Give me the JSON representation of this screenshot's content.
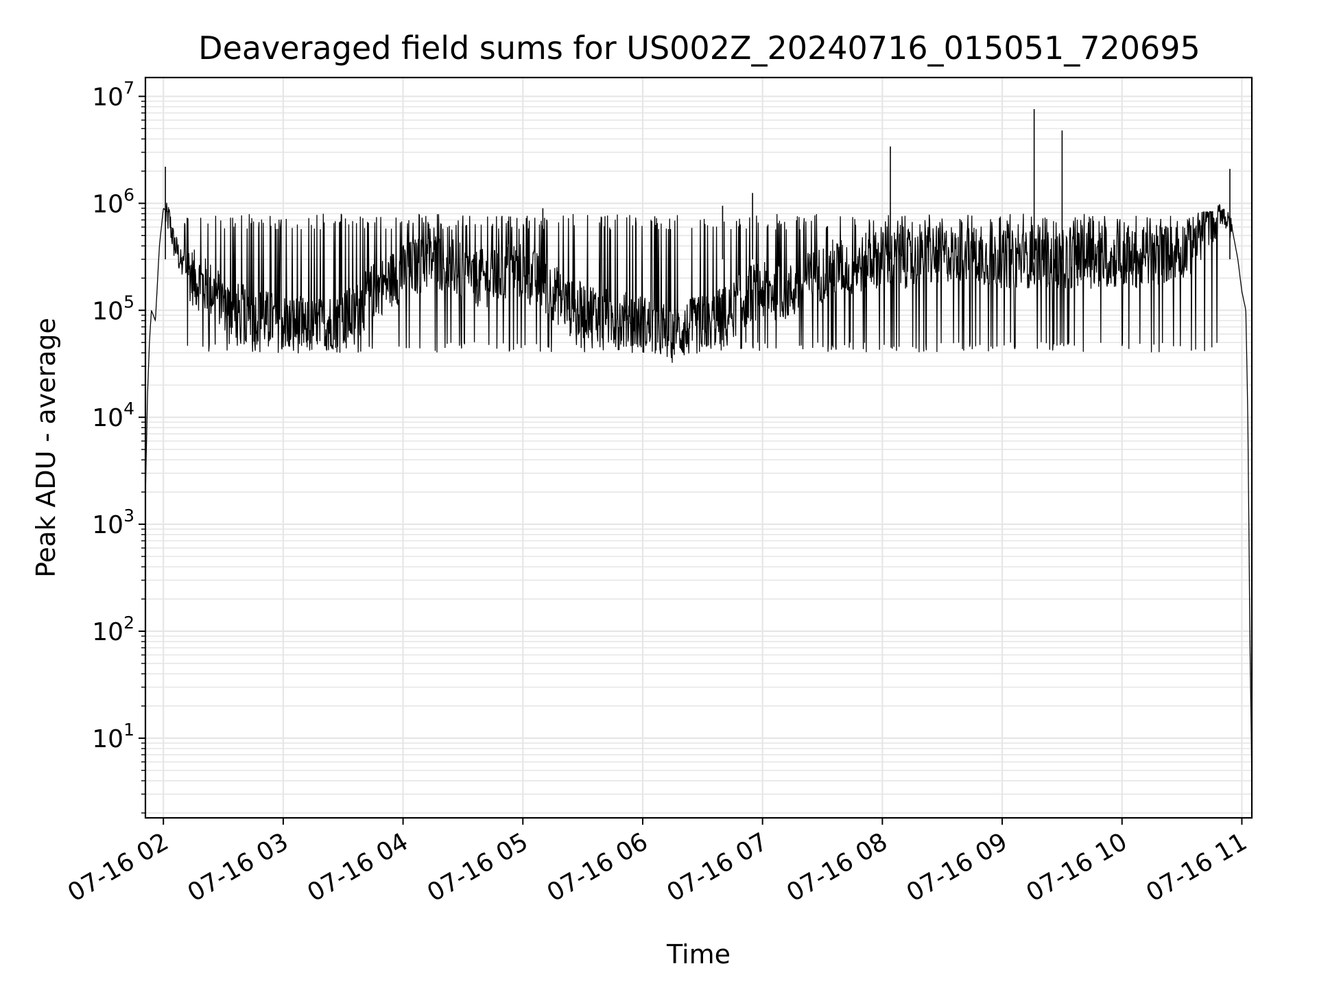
{
  "chart_data": {
    "type": "line",
    "title": "Deaveraged field sums for US002Z_20240716_015051_720695",
    "xlabel": "Time",
    "ylabel": "Peak ADU - average",
    "yscale": "log",
    "ylim": [
      1.8,
      15000000
    ],
    "xlim": [
      "07-16 01:51",
      "07-16 11:05"
    ],
    "grid": true,
    "line_color": "#000000",
    "x_ticks": [
      {
        "value": "07-16 02:00",
        "label": "07-16 02"
      },
      {
        "value": "07-16 03:00",
        "label": "07-16 03"
      },
      {
        "value": "07-16 04:00",
        "label": "07-16 04"
      },
      {
        "value": "07-16 05:00",
        "label": "07-16 05"
      },
      {
        "value": "07-16 06:00",
        "label": "07-16 06"
      },
      {
        "value": "07-16 07:00",
        "label": "07-16 07"
      },
      {
        "value": "07-16 08:00",
        "label": "07-16 08"
      },
      {
        "value": "07-16 09:00",
        "label": "07-16 09"
      },
      {
        "value": "07-16 10:00",
        "label": "07-16 10"
      },
      {
        "value": "07-16 11:00",
        "label": "07-16 11"
      }
    ],
    "y_ticks": [
      {
        "value": 10,
        "base": "10",
        "exp": "1"
      },
      {
        "value": 100,
        "base": "10",
        "exp": "2"
      },
      {
        "value": 1000,
        "base": "10",
        "exp": "3"
      },
      {
        "value": 10000,
        "base": "10",
        "exp": "4"
      },
      {
        "value": 100000,
        "base": "10",
        "exp": "5"
      },
      {
        "value": 1000000,
        "base": "10",
        "exp": "6"
      },
      {
        "value": 10000000,
        "base": "10",
        "exp": "7"
      }
    ],
    "series": [
      {
        "x": [
          "07-16 01:51",
          "07-16 01:52",
          "07-16 01:53",
          "07-16 01:54",
          "07-16 01:56",
          "07-16 01:58",
          "07-16 02:00",
          "07-16 02:03",
          "07-16 02:05",
          "07-16 02:07",
          "07-16 02:09",
          "07-16 02:15",
          "07-16 02:25",
          "07-16 02:35",
          "07-16 02:45",
          "07-16 02:55",
          "07-16 03:05",
          "07-16 03:15",
          "07-16 03:25",
          "07-16 03:35",
          "07-16 03:45",
          "07-16 03:55",
          "07-16 04:05",
          "07-16 04:15",
          "07-16 04:25",
          "07-16 04:35",
          "07-16 04:45",
          "07-16 04:55",
          "07-16 05:05",
          "07-16 05:15",
          "07-16 05:25",
          "07-16 05:35",
          "07-16 05:45",
          "07-16 05:55",
          "07-16 06:05",
          "07-16 06:15",
          "07-16 06:25",
          "07-16 06:35",
          "07-16 06:45",
          "07-16 06:55",
          "07-16 07:05",
          "07-16 07:15",
          "07-16 07:25",
          "07-16 07:35",
          "07-16 07:45",
          "07-16 07:55",
          "07-16 08:05",
          "07-16 08:15",
          "07-16 08:25",
          "07-16 08:35",
          "07-16 08:45",
          "07-16 08:55",
          "07-16 09:05",
          "07-16 09:15",
          "07-16 09:25",
          "07-16 09:35",
          "07-16 09:45",
          "07-16 09:55",
          "07-16 10:05",
          "07-16 10:15",
          "07-16 10:25",
          "07-16 10:35",
          "07-16 10:45",
          "07-16 10:50",
          "07-16 10:55",
          "07-16 10:58",
          "07-16 11:00",
          "07-16 11:02",
          "07-16 11:03",
          "07-16 11:04",
          "07-16 11:05"
        ],
        "y": [
          1800,
          15000,
          50000,
          100000,
          80000,
          400000,
          900000,
          800000,
          500000,
          400000,
          300000,
          200000,
          150000,
          100000,
          90000,
          80000,
          75000,
          70000,
          80000,
          90000,
          150000,
          200000,
          250000,
          300000,
          250000,
          200000,
          200000,
          250000,
          200000,
          150000,
          100000,
          100000,
          80000,
          80000,
          70000,
          60000,
          70000,
          80000,
          100000,
          150000,
          150000,
          150000,
          200000,
          250000,
          250000,
          300000,
          300000,
          300000,
          300000,
          350000,
          350000,
          300000,
          300000,
          300000,
          300000,
          300000,
          300000,
          300000,
          300000,
          300000,
          350000,
          400000,
          800000,
          900000,
          600000,
          300000,
          150000,
          100000,
          10000,
          100,
          4
        ]
      }
    ],
    "spikes": [
      {
        "x": "07-16 02:01",
        "y": 2200000
      },
      {
        "x": "07-16 08:04",
        "y": 3400000
      },
      {
        "x": "07-16 09:16",
        "y": 7600000
      },
      {
        "x": "07-16 09:30",
        "y": 4800000
      },
      {
        "x": "07-16 10:54",
        "y": 2100000
      },
      {
        "x": "07-16 05:10",
        "y": 900000
      },
      {
        "x": "07-16 06:55",
        "y": 1250000
      },
      {
        "x": "07-16 06:40",
        "y": 950000
      }
    ],
    "noise_band": {
      "low": 40000,
      "high": 800000
    }
  }
}
